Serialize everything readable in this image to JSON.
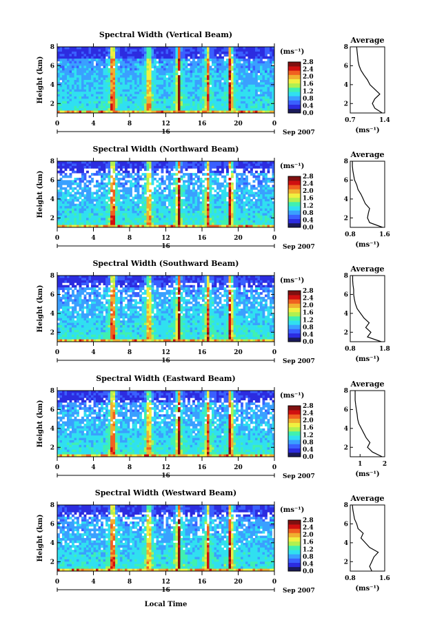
{
  "figure": {
    "y_axis_label": "Height (km)",
    "x_axis_label": "Local Time",
    "date_label_day": "16",
    "date_label_month": "Sep 2007",
    "colorbar_unit": "(ms⁻¹)",
    "average_title": "Average",
    "average_unit": "(ms⁻¹)",
    "x_ticks": [
      "0",
      "4",
      "8",
      "12",
      "16",
      "20",
      "0"
    ],
    "y_ticks": [
      "2",
      "4",
      "6",
      "8"
    ],
    "colorbar_ticks": [
      "0.0",
      "0.4",
      "0.8",
      "1.2",
      "1.6",
      "2.0",
      "2.4",
      "2.8"
    ],
    "colormap": [
      "#1a1a5a",
      "#2c2ce0",
      "#3a60ff",
      "#3aa0ff",
      "#30e0f0",
      "#40f0b0",
      "#b0f050",
      "#f0f040",
      "#f0b030",
      "#f06020",
      "#d01010",
      "#801010"
    ]
  },
  "chart_data": [
    {
      "type": "heatmap",
      "title": "Spectral Width (Vertical Beam)",
      "xlabel": "Local Time",
      "ylabel": "Height (km)",
      "xlim": [
        0,
        24
      ],
      "ylim": [
        1,
        8
      ],
      "colorbar_range": [
        0.0,
        2.8
      ],
      "avg_xticks": [
        "0.7",
        "1.4"
      ],
      "avg_xlim": [
        0.7,
        1.4
      ],
      "avg_profile": {
        "height": [
          1.0,
          1.5,
          2.0,
          2.5,
          3.0,
          3.5,
          4.0,
          4.5,
          5.0,
          5.5,
          6.0,
          6.5,
          7.0,
          7.5,
          8.0
        ],
        "value": [
          1.35,
          1.2,
          1.15,
          1.2,
          1.3,
          1.2,
          1.1,
          1.05,
          0.98,
          0.92,
          0.88,
          0.86,
          0.85,
          0.84,
          0.83
        ]
      }
    },
    {
      "type": "heatmap",
      "title": "Spectral Width (Northward Beam)",
      "xlabel": "Local Time",
      "ylabel": "Height (km)",
      "xlim": [
        0,
        24
      ],
      "ylim": [
        1,
        8
      ],
      "colorbar_range": [
        0.0,
        2.8
      ],
      "avg_xticks": [
        "0.8",
        "1.6"
      ],
      "avg_xlim": [
        0.8,
        1.6
      ],
      "avg_profile": {
        "height": [
          1.0,
          1.5,
          2.0,
          2.5,
          3.0,
          3.5,
          4.0,
          4.5,
          5.0,
          5.5,
          6.0,
          6.5,
          7.0,
          7.5,
          8.0
        ],
        "value": [
          1.55,
          1.25,
          1.2,
          1.22,
          1.25,
          1.15,
          1.1,
          1.05,
          0.98,
          0.95,
          0.9,
          0.88,
          0.86,
          0.85,
          0.85
        ]
      }
    },
    {
      "type": "heatmap",
      "title": "Spectral Width (Southward Beam)",
      "xlabel": "Local Time",
      "ylabel": "Height (km)",
      "xlim": [
        0,
        24
      ],
      "ylim": [
        1,
        8
      ],
      "colorbar_range": [
        0.0,
        2.8
      ],
      "avg_xticks": [
        "0.8",
        "1.8"
      ],
      "avg_xlim": [
        0.8,
        1.8
      ],
      "avg_profile": {
        "height": [
          1.0,
          1.5,
          2.0,
          2.5,
          3.0,
          3.5,
          4.0,
          4.5,
          5.0,
          5.5,
          6.0,
          6.5,
          7.0,
          7.5,
          8.0
        ],
        "value": [
          1.7,
          1.3,
          1.4,
          1.25,
          1.35,
          1.2,
          1.1,
          1.0,
          0.95,
          0.92,
          0.9,
          0.9,
          0.88,
          0.87,
          0.87
        ]
      }
    },
    {
      "type": "heatmap",
      "title": "Spectral Width (Eastward Beam)",
      "xlabel": "Local Time",
      "ylabel": "Height (km)",
      "xlim": [
        0,
        24
      ],
      "ylim": [
        1,
        8
      ],
      "colorbar_range": [
        0.0,
        2.8
      ],
      "avg_xticks": [
        "1",
        "2"
      ],
      "avg_xlim": [
        0.6,
        2.0
      ],
      "avg_profile": {
        "height": [
          1.0,
          1.5,
          2.0,
          2.5,
          3.0,
          3.5,
          4.0,
          4.5,
          5.0,
          5.5,
          6.0,
          6.5,
          7.0,
          7.5,
          8.0
        ],
        "value": [
          1.9,
          1.5,
          1.3,
          1.4,
          1.25,
          1.15,
          1.05,
          0.95,
          0.9,
          0.88,
          0.85,
          0.82,
          0.8,
          0.8,
          0.8
        ]
      }
    },
    {
      "type": "heatmap",
      "title": "Spectral Width (Westward Beam)",
      "xlabel": "Local Time",
      "ylabel": "Height (km)",
      "xlim": [
        0,
        24
      ],
      "ylim": [
        1,
        8
      ],
      "colorbar_range": [
        0.0,
        2.8
      ],
      "avg_xticks": [
        "0.8",
        "1.6"
      ],
      "avg_xlim": [
        0.8,
        1.6
      ],
      "avg_profile": {
        "height": [
          1.0,
          1.5,
          2.0,
          2.5,
          3.0,
          3.5,
          4.0,
          4.5,
          5.0,
          5.5,
          6.0,
          6.5,
          7.0,
          7.5,
          8.0
        ],
        "value": [
          1.3,
          1.25,
          1.3,
          1.35,
          1.45,
          1.25,
          1.15,
          1.05,
          1.1,
          0.98,
          0.95,
          0.9,
          0.88,
          0.86,
          0.85
        ]
      }
    }
  ]
}
